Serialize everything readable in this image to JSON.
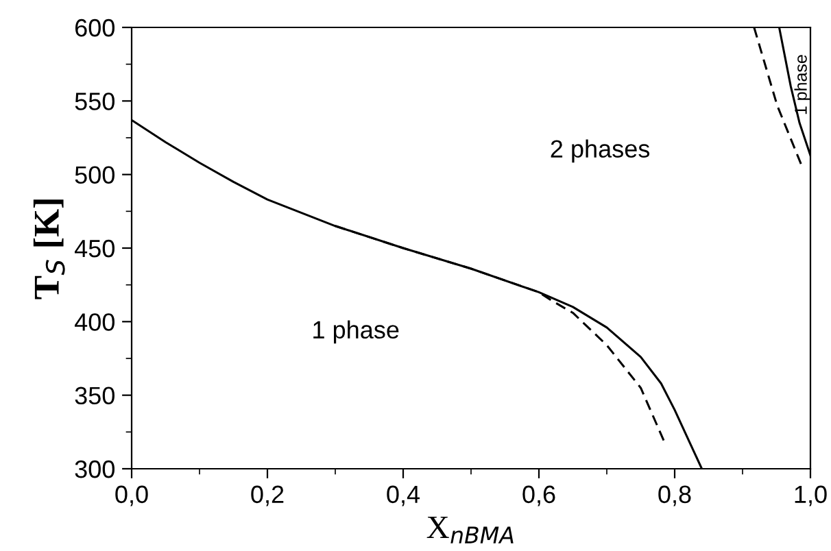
{
  "chart_data": {
    "type": "line",
    "xlabel": "X$_{nBMA}$",
    "ylabel": "T$_{S}$ [K]",
    "xlim": [
      0,
      1
    ],
    "ylim": [
      300,
      600
    ],
    "xticks": [
      {
        "value": 0,
        "label": "0,0"
      },
      {
        "value": 0.1,
        "label": null
      },
      {
        "value": 0.2,
        "label": "0,2"
      },
      {
        "value": 0.3,
        "label": null
      },
      {
        "value": 0.4,
        "label": "0,4"
      },
      {
        "value": 0.5,
        "label": null
      },
      {
        "value": 0.6,
        "label": "0,6"
      },
      {
        "value": 0.7,
        "label": null
      },
      {
        "value": 0.8,
        "label": "0,8"
      },
      {
        "value": 0.9,
        "label": null
      },
      {
        "value": 1,
        "label": "1,0"
      }
    ],
    "yticks": [
      300,
      {
        "value": 325,
        "label": null
      },
      350,
      {
        "value": 375,
        "label": null
      },
      400,
      {
        "value": 425,
        "label": null
      },
      450,
      {
        "value": 475,
        "label": null
      },
      500,
      {
        "value": 525,
        "label": null
      },
      550,
      {
        "value": 575,
        "label": null
      },
      600
    ],
    "grid": false,
    "legend": false,
    "marker": "none",
    "series": [
      {
        "color": "#000000",
        "line_style": "solid",
        "x": [
          0,
          0.05,
          0.1,
          0.15,
          0.2,
          0.3,
          0.4,
          0.5,
          0.6,
          0.65,
          0.7,
          0.75,
          0.78,
          0.8,
          0.82,
          0.84
        ],
        "values": [
          537,
          522,
          508,
          495,
          483,
          465,
          450,
          436,
          420,
          410,
          396,
          376,
          358,
          340,
          320,
          300
        ]
      },
      {
        "color": "#000000",
        "line_style": "dashed",
        "x": [
          0.3,
          0.4,
          0.5,
          0.6,
          0.62,
          0.65,
          0.7,
          0.75,
          0.785
        ],
        "values": [
          465,
          450,
          436,
          420,
          414,
          406,
          384,
          355,
          318
        ]
      },
      {
        "color": "#000000",
        "line_style": "solid",
        "x": [
          0.954,
          0.971,
          0.984,
          1
        ],
        "values": [
          600,
          560,
          535,
          513
        ]
      },
      {
        "color": "#000000",
        "line_style": "dashed",
        "x": [
          0.917,
          0.951,
          0.988
        ],
        "values": [
          600,
          547,
          505
        ]
      }
    ],
    "annotations": [
      "1 phase",
      "2 phases",
      "1 phase"
    ]
  }
}
